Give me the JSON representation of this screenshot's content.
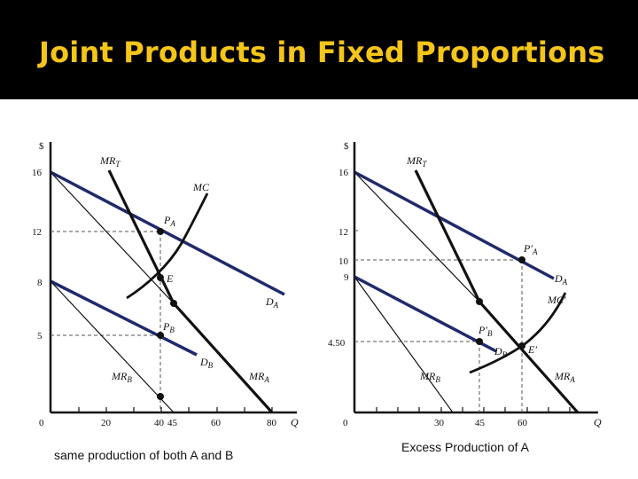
{
  "slide": {
    "title": "Joint Products in Fixed Proportions"
  },
  "left_graph": {
    "y_axis_label": "$",
    "x_axis_label": "Q",
    "y_ticks": [
      "16",
      "12",
      "8",
      "5"
    ],
    "x_ticks": [
      "0",
      "20",
      "40",
      "45",
      "60",
      "80"
    ],
    "curves": {
      "mrt": "MR",
      "mrt_sub": "T",
      "mc": "MC",
      "pa": "P",
      "pa_sub": "A",
      "e": "E",
      "da": "D",
      "da_sub": "A",
      "pb": "P",
      "pb_sub": "B",
      "db": "D",
      "db_sub": "B",
      "mrb": "MR",
      "mrb_sub": "B",
      "mra": "MR",
      "mra_sub": "A"
    },
    "caption": "same production of both A and B"
  },
  "right_graph": {
    "y_axis_label": "$",
    "x_axis_label": "Q",
    "y_ticks": [
      "16",
      "12",
      "10",
      "9",
      "4.50"
    ],
    "x_ticks": [
      "0",
      "30",
      "45",
      "60"
    ],
    "curves": {
      "mrt": "MR",
      "mrt_sub": "T",
      "pa": "P′",
      "pa_sub": "A",
      "da": "D",
      "da_sub": "A",
      "mc": "MC′",
      "pb": "P′",
      "pb_sub": "B",
      "db": "D",
      "db_sub": "B",
      "e": "E′",
      "mrb": "MR",
      "mrb_sub": "B",
      "mra": "MR",
      "mra_sub": "A"
    },
    "caption": "Excess Production of  A"
  },
  "colors": {
    "title": "#f5c518",
    "demand_curves": "#1f2a6b",
    "background_bar": "#000000"
  }
}
